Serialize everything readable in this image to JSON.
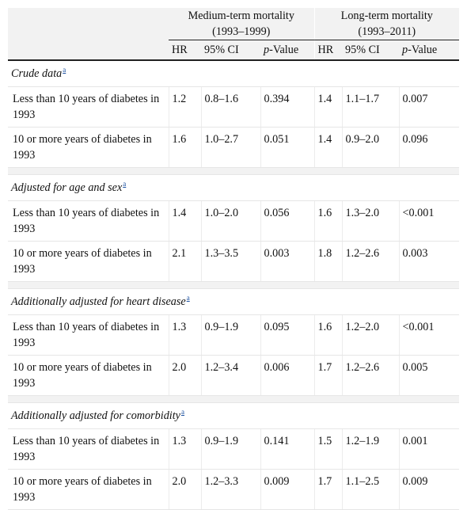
{
  "header": {
    "group1_title": "Medium-term mortality",
    "group1_period": "(1993–1999)",
    "group2_title": "Long-term mortality",
    "group2_period": "(1993–2011)",
    "columns": {
      "hr": "HR",
      "ci": "95% CI",
      "p_italic": "p",
      "p_rest": "-Value"
    }
  },
  "sections": [
    {
      "title": "Crude data",
      "footnote": "a",
      "rows": [
        {
          "label": "Less than 10 years of diabetes in 1993",
          "hr1": "1.2",
          "ci1": "0.8–1.6",
          "p1": "0.394",
          "hr2": "1.4",
          "ci2": "1.1–1.7",
          "p2": "0.007"
        },
        {
          "label": "10 or more years of diabetes in 1993",
          "hr1": "1.6",
          "ci1": "1.0–2.7",
          "p1": "0.051",
          "hr2": "1.4",
          "ci2": "0.9–2.0",
          "p2": "0.096"
        }
      ]
    },
    {
      "title": "Adjusted for age and sex",
      "footnote": "a",
      "rows": [
        {
          "label": "Less than 10 years of diabetes in 1993",
          "hr1": "1.4",
          "ci1": "1.0–2.0",
          "p1": "0.056",
          "hr2": "1.6",
          "ci2": "1.3–2.0",
          "p2": "<0.001"
        },
        {
          "label": "10 or more years of diabetes in 1993",
          "hr1": "2.1",
          "ci1": "1.3–3.5",
          "p1": "0.003",
          "hr2": "1.8",
          "ci2": "1.2–2.6",
          "p2": "0.003"
        }
      ]
    },
    {
      "title": "Additionally adjusted for heart disease",
      "footnote": "a",
      "rows": [
        {
          "label": "Less than 10 years of diabetes in 1993",
          "hr1": "1.3",
          "ci1": "0.9–1.9",
          "p1": "0.095",
          "hr2": "1.6",
          "ci2": "1.2–2.0",
          "p2": "<0.001"
        },
        {
          "label": "10 or more years of diabetes in 1993",
          "hr1": "2.0",
          "ci1": "1.2–3.4",
          "p1": "0.006",
          "hr2": "1.7",
          "ci2": "1.2–2.6",
          "p2": "0.005"
        }
      ]
    },
    {
      "title": "Additionally adjusted for comorbidity",
      "footnote": "a",
      "rows": [
        {
          "label": "Less than 10 years of diabetes in 1993",
          "hr1": "1.3",
          "ci1": "0.9–1.9",
          "p1": "0.141",
          "hr2": "1.5",
          "ci2": "1.2–1.9",
          "p2": "0.001"
        },
        {
          "label": "10 or more years of diabetes in 1993",
          "hr1": "2.0",
          "ci1": "1.2–3.3",
          "p1": "0.009",
          "hr2": "1.7",
          "ci2": "1.1–2.5",
          "p2": "0.009"
        }
      ]
    }
  ]
}
